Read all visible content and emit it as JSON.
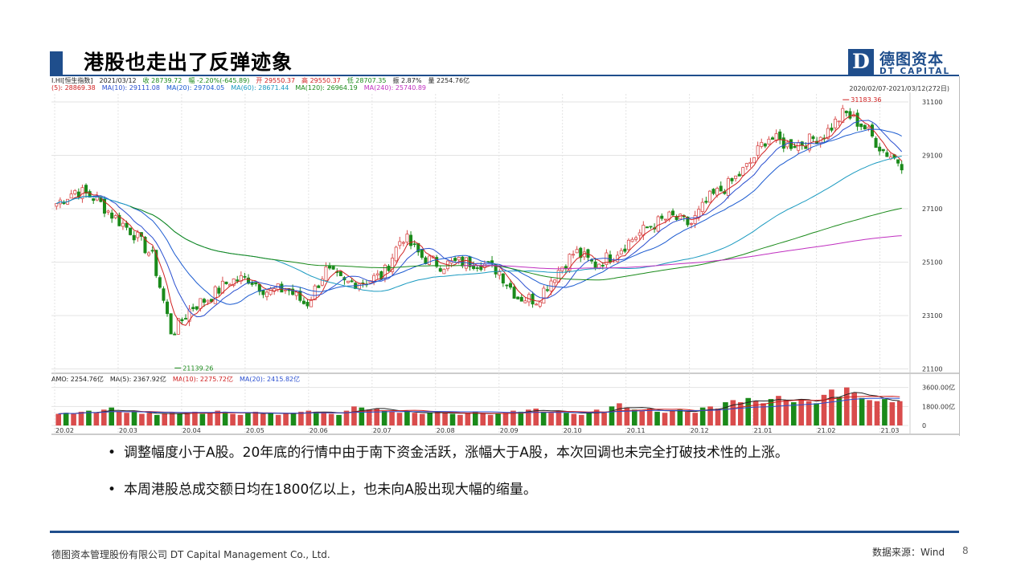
{
  "slide": {
    "title": "港股也走出了反弹迹象",
    "logo_mark": "D",
    "logo_cn": "德图资本",
    "logo_en": "DT CAPITAL"
  },
  "chart_header": {
    "line1": [
      {
        "text": "I.HI[恒生指数]",
        "color": "#222"
      },
      {
        "text": "2021/03/12",
        "color": "#222"
      },
      {
        "text": "收 28739.72",
        "color": "#1a8a1a"
      },
      {
        "text": "幅 -2.20%(-645.89)",
        "color": "#1a8a1a"
      },
      {
        "text": "开 29550.37",
        "color": "#d02020"
      },
      {
        "text": "高 29550.37",
        "color": "#d02020"
      },
      {
        "text": "低 28707.35",
        "color": "#1a8a1a"
      },
      {
        "text": "振 2.87%",
        "color": "#222"
      },
      {
        "text": "量 2254.76亿",
        "color": "#222"
      }
    ],
    "line2": [
      {
        "text": "(5): 28869.38",
        "color": "#d02020"
      },
      {
        "text": "MA(10): 29111.08",
        "color": "#2a4fd0"
      },
      {
        "text": "MA(20): 29704.05",
        "color": "#1a5ad0"
      },
      {
        "text": "MA(60): 28671.44",
        "color": "#1a9ac0"
      },
      {
        "text": "MA(120): 26964.19",
        "color": "#1a8a1a"
      },
      {
        "text": "MA(240): 25740.89",
        "color": "#c030c0"
      }
    ],
    "range": "2020/02/07-2021/03/12(272日)"
  },
  "volume_header": [
    {
      "text": "AMO: 2254.76亿",
      "color": "#222"
    },
    {
      "text": "MA(5): 2367.92亿",
      "color": "#222"
    },
    {
      "text": "MA(10): 2275.72亿",
      "color": "#d02020"
    },
    {
      "text": "MA(20): 2415.82亿",
      "color": "#2a4fd0"
    }
  ],
  "chart_data": {
    "type": "candlestick",
    "dates": [
      "20.02",
      "20.03",
      "20.04",
      "20.05",
      "20.06",
      "20.07",
      "20.08",
      "20.09",
      "20.10",
      "20.11",
      "20.12",
      "21.01",
      "21.02",
      "21.03"
    ],
    "y_ticks": [
      31100,
      29100,
      27100,
      25100,
      23100,
      21100
    ],
    "ylim": [
      21000,
      31400
    ],
    "annotations": {
      "high": "31183.36",
      "low": "21139.26"
    },
    "close_series": [
      27300,
      27800,
      27500,
      26800,
      26200,
      25300,
      22400,
      23400,
      23800,
      24400,
      24500,
      24000,
      24100,
      23500,
      24800,
      24300,
      24400,
      24600,
      26100,
      25300,
      25000,
      25100,
      25100,
      24800,
      23800,
      23700,
      24700,
      25500,
      25000,
      25400,
      26000,
      26500,
      26800,
      26500,
      27500,
      28000,
      28700,
      29800,
      29500,
      29600,
      29900,
      30700,
      30200,
      29300,
      28800
    ],
    "volume": {
      "y_ticks": [
        "3600.00亿",
        "1800.00亿",
        "0"
      ],
      "ylim": [
        0,
        3800
      ],
      "values": [
        1100,
        1200,
        1100,
        1300,
        1400,
        1200,
        1500,
        1700,
        1300,
        1200,
        1300,
        1100,
        1200,
        1000,
        1100,
        1200,
        1100,
        1200,
        1300,
        1100,
        1200,
        1400,
        1300,
        1100,
        1000,
        1200,
        1300,
        1100,
        1200,
        1000,
        1100,
        1200,
        1300,
        1400,
        1300,
        1200,
        1100,
        1000,
        1400,
        1800,
        1700,
        1500,
        1600,
        1400,
        1300,
        1200,
        1300,
        1200,
        1100,
        1200,
        1300,
        1200,
        1100,
        1000,
        1200,
        1300,
        1100,
        1000,
        1100,
        1200,
        1400,
        1300,
        1500,
        1600,
        1300,
        1200,
        1400,
        1200,
        1100,
        1000,
        1200,
        1500,
        1300,
        1800,
        2100,
        1700,
        1500,
        1400,
        1600,
        1300,
        1200,
        1400,
        1500,
        1300,
        1200,
        1700,
        1800,
        1600,
        2200,
        2400,
        2200,
        2600,
        2300,
        2100,
        2500,
        2800,
        2400,
        2200,
        2500,
        2300,
        2100,
        2900,
        3400,
        2700,
        3600,
        3100,
        2600,
        2400,
        2300,
        2500,
        2200,
        2300
      ]
    }
  },
  "bullets": [
    "调整幅度小于A股。20年底的行情中由于南下资金活跃，涨幅大于A股，本次回调也未完全打破技术性的上涨。",
    "本周港股总成交额日均在1800亿以上，也未向A股出现大幅的缩量。"
  ],
  "footer": {
    "company": "德图资本管理股份有限公司 DT Capital Management Co., Ltd.",
    "source": "数据来源：Wind",
    "page": "8"
  },
  "colors": {
    "brand": "#1f4e8c",
    "up": "#d94c4c",
    "down": "#1a8a1a",
    "ma5": "#d02020",
    "ma10": "#2a4fd0",
    "ma20": "#1a5ad0",
    "ma60": "#1a9ac0",
    "ma120": "#1a8a1a",
    "ma240": "#c030c0"
  }
}
